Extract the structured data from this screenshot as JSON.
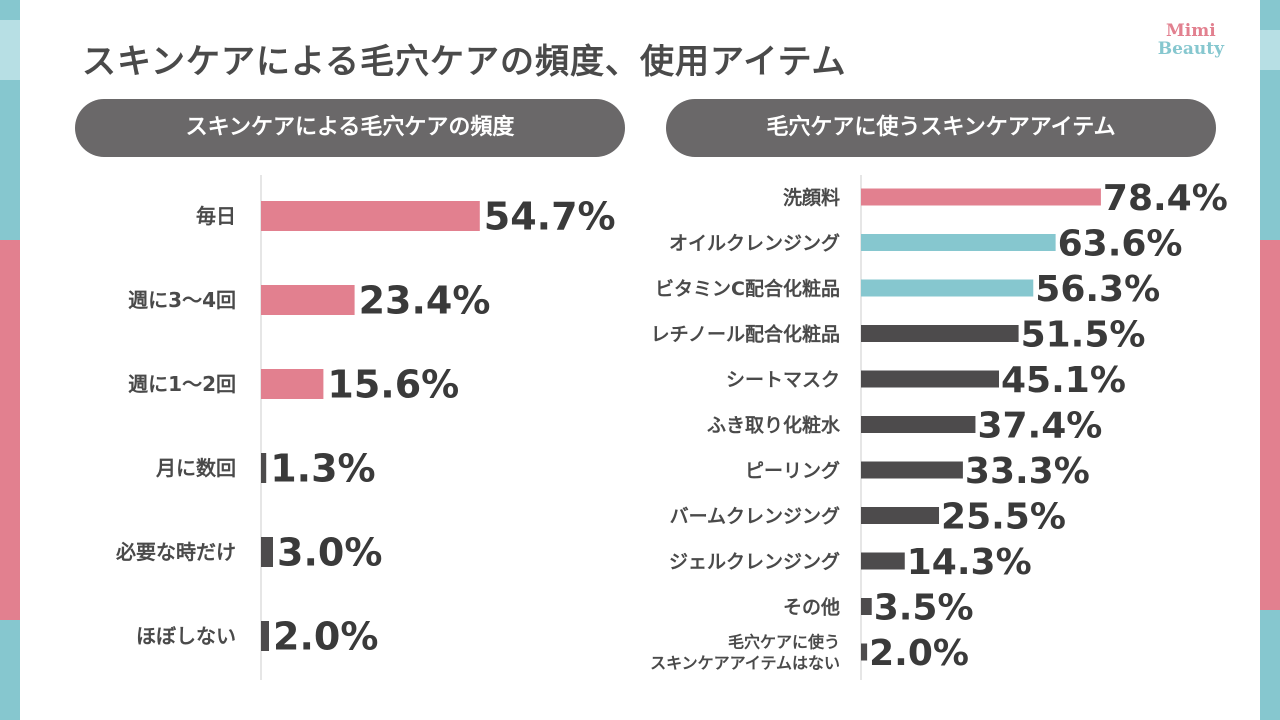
{
  "title": "スキンケアによる毛穴ケアの頻度、使用アイテム",
  "logo": {
    "line1": "Mimi",
    "line2": "Beauty"
  },
  "colors": {
    "pink": "#e2808f",
    "teal": "#86c7cf",
    "dark": "#4d4b4c",
    "pill": "#6a6869",
    "text": "#4a4a4a"
  },
  "chart_data": [
    {
      "type": "bar",
      "orientation": "horizontal",
      "title": "スキンケアによる毛穴ケアの頻度",
      "categories": [
        "毎日",
        "週に3〜4回",
        "週に1〜2回",
        "月に数回",
        "必要な時だけ",
        "ほぼしない"
      ],
      "values": [
        54.7,
        23.4,
        15.6,
        1.3,
        3.0,
        2.0
      ],
      "labels": [
        "54.7%",
        "23.4%",
        "15.6%",
        "1.3%",
        "3.0%",
        "2.0%"
      ],
      "colors": [
        "pink",
        "pink",
        "pink",
        "dark",
        "dark",
        "dark"
      ],
      "unit": "%",
      "xlim": [
        0,
        100
      ]
    },
    {
      "type": "bar",
      "orientation": "horizontal",
      "title": "毛穴ケアに使うスキンケアアイテム",
      "categories": [
        "洗顔料",
        "オイルクレンジング",
        "ビタミンC配合化粧品",
        "レチノール配合化粧品",
        "シートマスク",
        "ふき取り化粧水",
        "ピーリング",
        "バームクレンジング",
        "ジェルクレンジング",
        "その他",
        "毛穴ケアに使う\nスキンケアアイテムはない"
      ],
      "values": [
        78.4,
        63.6,
        56.3,
        51.5,
        45.1,
        37.4,
        33.3,
        25.5,
        14.3,
        3.5,
        2.0
      ],
      "labels": [
        "78.4%",
        "63.6%",
        "56.3%",
        "51.5%",
        "45.1%",
        "37.4%",
        "33.3%",
        "25.5%",
        "14.3%",
        "3.5%",
        "2.0%"
      ],
      "colors": [
        "pink",
        "teal",
        "teal",
        "dark",
        "dark",
        "dark",
        "dark",
        "dark",
        "dark",
        "dark",
        "dark"
      ],
      "unit": "%",
      "xlim": [
        0,
        100
      ]
    }
  ]
}
